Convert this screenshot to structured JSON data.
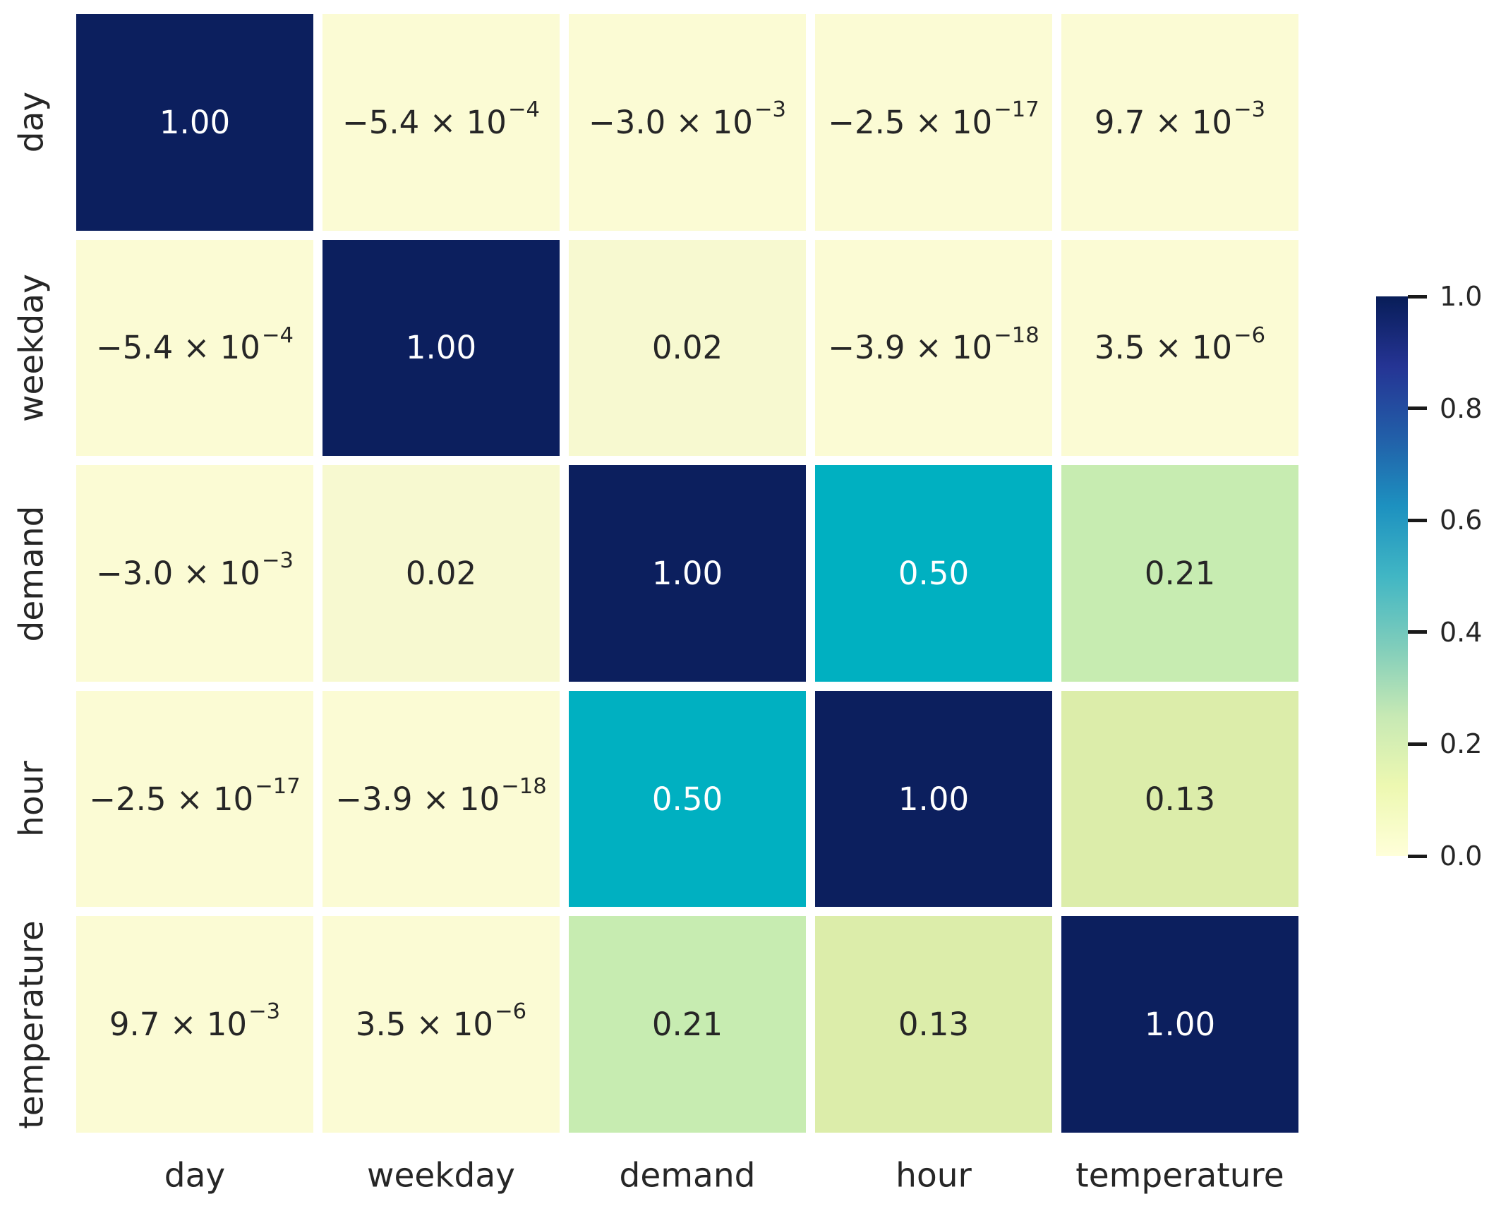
{
  "figure": {
    "background": "#ffffff",
    "text_color": "#262626",
    "grid_gap_color": "#ffffff"
  },
  "chart_data": {
    "type": "heatmap",
    "title": "",
    "xlabel": "",
    "ylabel": "",
    "x_tick_labels": [
      "day",
      "weekday",
      "demand",
      "hour",
      "temperature"
    ],
    "y_tick_labels": [
      "day",
      "weekday",
      "demand",
      "hour",
      "temperature"
    ],
    "values": [
      [
        1.0,
        -0.00054,
        -0.003,
        -2.5e-17,
        0.0097
      ],
      [
        -0.00054,
        1.0,
        0.02,
        -3.9e-18,
        3.5e-06
      ],
      [
        -0.003,
        0.02,
        1.0,
        0.5,
        0.21
      ],
      [
        -2.5e-17,
        -3.9e-18,
        0.5,
        1.0,
        0.13
      ],
      [
        0.0097,
        3.5e-06,
        0.21,
        0.13,
        1.0
      ]
    ],
    "cell_labels": [
      [
        "1.00",
        "−5.4 × 10|−4",
        "−3.0 × 10|−3",
        "−2.5 × 10|−17",
        "9.7 × 10|−3"
      ],
      [
        "−5.4 × 10|−4",
        "1.00",
        "0.02",
        "−3.9 × 10|−18",
        "3.5 × 10|−6"
      ],
      [
        "−3.0 × 10|−3",
        "0.02",
        "1.00",
        "0.50",
        "0.21"
      ],
      [
        "−2.5 × 10|−17",
        "−3.9 × 10|−18",
        "0.50",
        "1.00",
        "0.13"
      ],
      [
        "9.7 × 10|−3",
        "3.5 × 10|−6",
        "0.21",
        "0.13",
        "1.00"
      ]
    ],
    "cell_colors": [
      [
        "#0c1f5e",
        "#fbfbd4",
        "#fbfbd4",
        "#fbfbd4",
        "#fbfbd4"
      ],
      [
        "#fbfbd4",
        "#0c1f5e",
        "#f7f9d0",
        "#fbfbd4",
        "#fbfbd4"
      ],
      [
        "#fbfbd4",
        "#f7f9d0",
        "#0c1f5e",
        "#00b0c1",
        "#c7ecb1"
      ],
      [
        "#fbfbd4",
        "#fbfbd4",
        "#00b0c1",
        "#0c1f5e",
        "#dcedaa"
      ],
      [
        "#fbfbd4",
        "#fbfbd4",
        "#c7ecb1",
        "#dcedaa",
        "#0c1f5e"
      ]
    ],
    "cell_text_dark": "#262626",
    "cell_text_light": "#ffffff",
    "light_text_threshold": 0.45,
    "colormap_name": "YlGnBu",
    "colorbar": {
      "range": [
        0.0,
        1.0
      ],
      "tick_labels": [
        "1.0",
        "0.8",
        "0.6",
        "0.4",
        "0.2",
        "0.0"
      ],
      "tick_values": [
        1.0,
        0.8,
        0.6,
        0.4,
        0.2,
        0.0
      ],
      "gradient_stops": [
        {
          "pos": 0.0,
          "color": "#ffffd9"
        },
        {
          "pos": 0.125,
          "color": "#edf8b1"
        },
        {
          "pos": 0.25,
          "color": "#c7e9b4"
        },
        {
          "pos": 0.375,
          "color": "#7fcdbb"
        },
        {
          "pos": 0.5,
          "color": "#41b6c4"
        },
        {
          "pos": 0.625,
          "color": "#1d91c0"
        },
        {
          "pos": 0.75,
          "color": "#225ea8"
        },
        {
          "pos": 0.875,
          "color": "#253494"
        },
        {
          "pos": 1.0,
          "color": "#081d58"
        }
      ]
    }
  }
}
